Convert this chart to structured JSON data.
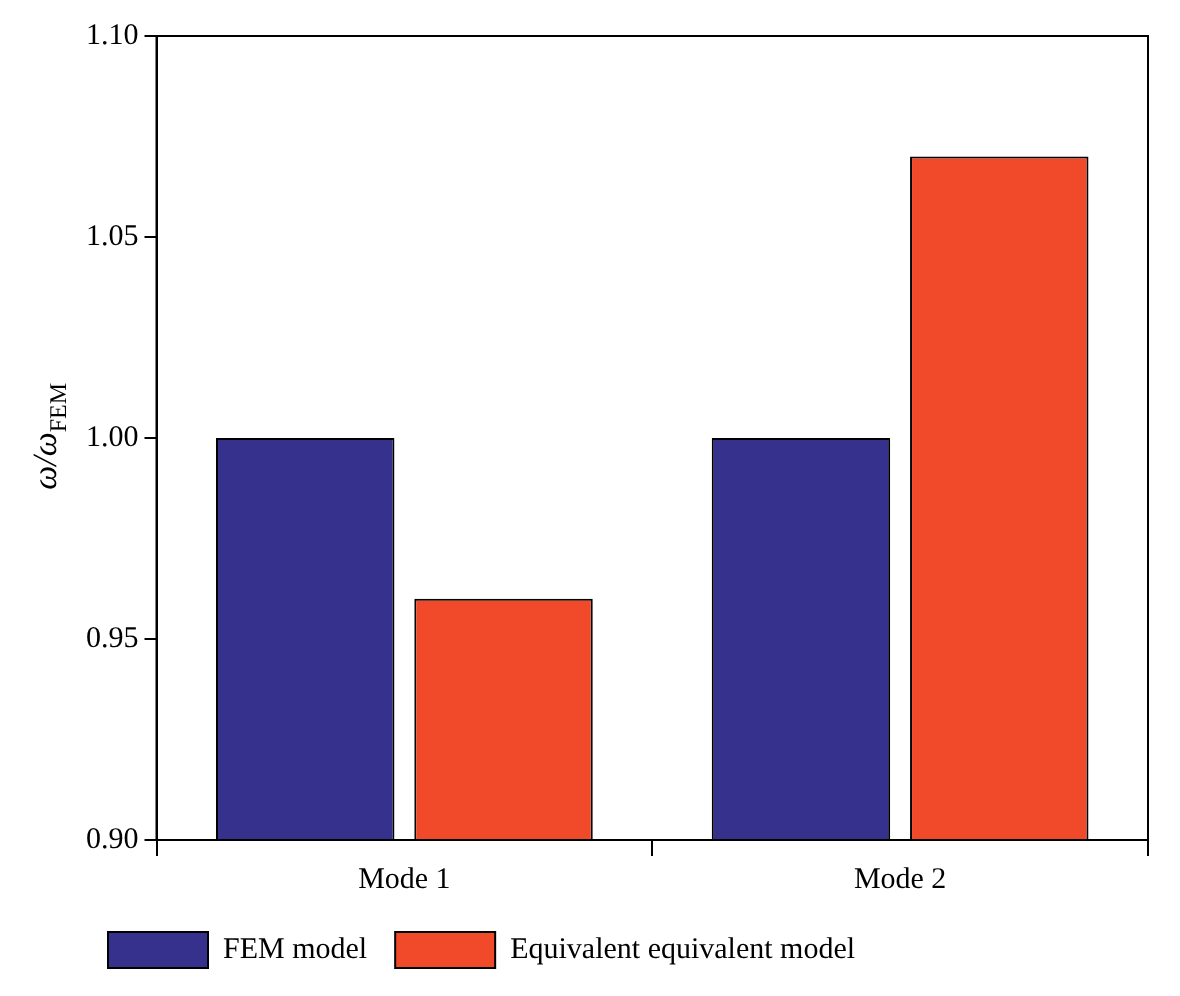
{
  "chart_data": {
    "type": "bar",
    "ylabel": "ω/ω$_{FEM}$",
    "categories": [
      "Mode 1",
      "Mode 2"
    ],
    "series": [
      {
        "name": "FEM model",
        "color": "#36318c",
        "values": [
          1.0,
          1.0
        ]
      },
      {
        "name": "Equivalent equivalent model",
        "color": "#f04a2a",
        "values": [
          0.96,
          1.07
        ]
      }
    ],
    "ylim": [
      0.9,
      1.1
    ],
    "yticks": [
      {
        "value": 0.9,
        "label": "0.90"
      },
      {
        "value": 0.95,
        "label": "0.95"
      },
      {
        "value": 1.0,
        "label": "1.00"
      },
      {
        "value": 1.05,
        "label": "1.05"
      },
      {
        "value": 1.1,
        "label": "1.10"
      }
    ],
    "grid": false,
    "legend": "bottom"
  }
}
